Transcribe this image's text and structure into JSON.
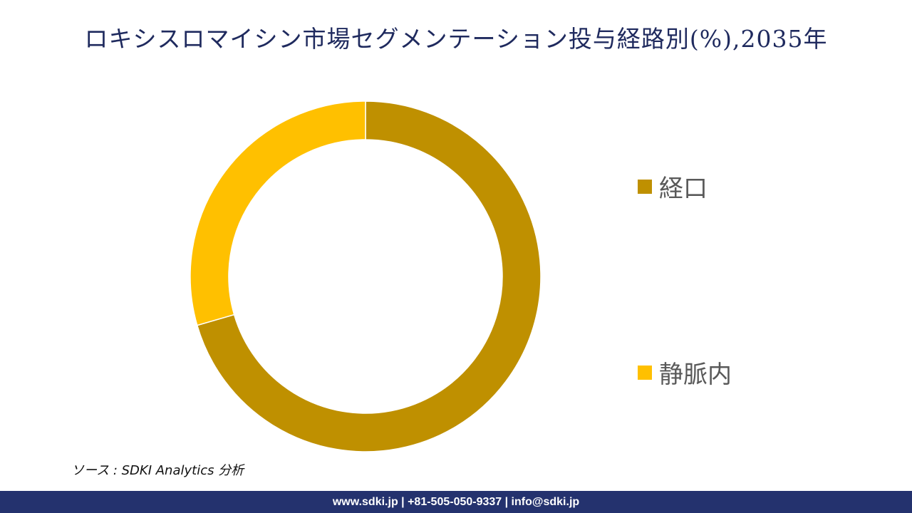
{
  "title": "ロキシスロマイシン市場セグメンテーション投与経路別(%),2035年",
  "source": "ソース : SDKI Analytics 分析",
  "footer": "www.sdki.jp | +81-505-050-9337 | info@sdki.jp",
  "chart_data": {
    "type": "pie",
    "variant": "donut",
    "title": "ロキシスロマイシン市場セグメンテーション投与経路別(%),2035年",
    "labels": [
      "経口",
      "静脈内"
    ],
    "values": [
      70.5,
      29.5
    ],
    "colors": [
      "#bf9000",
      "#ffc000"
    ],
    "legend_position": "right",
    "data_labels": false
  }
}
